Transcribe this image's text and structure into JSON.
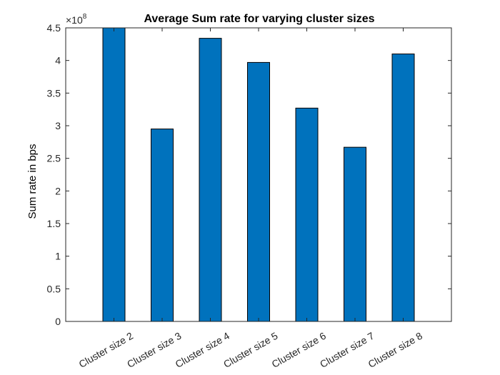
{
  "chart_data": {
    "type": "bar",
    "title": "Average Sum rate for varying cluster sizes",
    "xlabel": "",
    "ylabel": "Sum rate in bps",
    "categories": [
      "Cluster size 2",
      "Cluster size 3",
      "Cluster size 4",
      "Cluster size 5",
      "Cluster size 6",
      "Cluster size 7",
      "Cluster size 8"
    ],
    "values": [
      450000000,
      295000000,
      434000000,
      397000000,
      327000000,
      267000000,
      410000000
    ],
    "ylim": [
      0,
      450000000
    ],
    "yticks": [
      0,
      0.5,
      1,
      1.5,
      2,
      2.5,
      3,
      3.5,
      4,
      4.5
    ],
    "ytick_labels": [
      "0",
      "0.5",
      "1",
      "1.5",
      "2",
      "2.5",
      "3",
      "3.5",
      "4",
      "4.5"
    ],
    "y_multiplier": {
      "prefix": "×10",
      "exponent": "8"
    },
    "grid": false,
    "legend": "none",
    "bar_color": "#0072bd",
    "bar_edge_color": "#000000",
    "axis_color": "#262626"
  }
}
